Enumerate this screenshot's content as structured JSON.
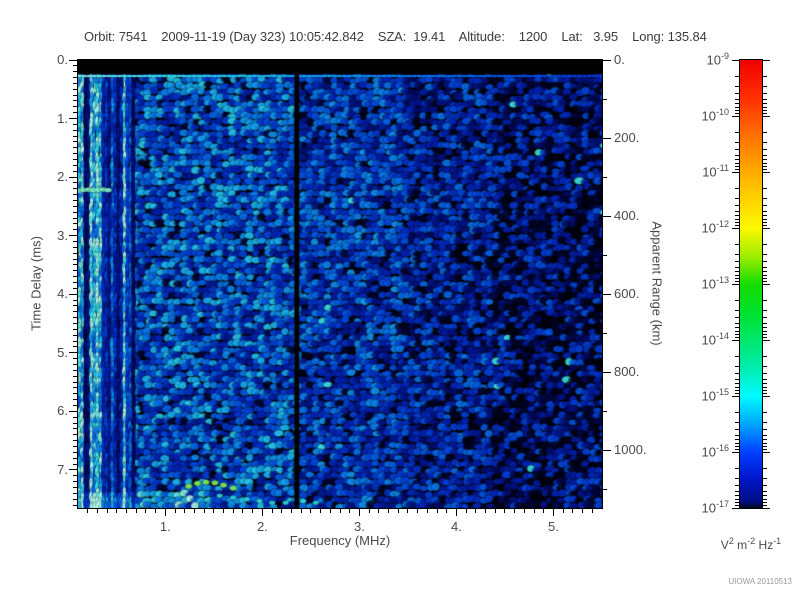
{
  "header": {
    "text": "Orbit: 7541    2009-11-19 (Day 323) 10:05:42.842    SZA:  19.41    Altitude:    1200    Lat:   3.95    Long: 135.84"
  },
  "footer": {
    "credit": "UIOWA 20110513"
  },
  "colors": {
    "text": "#3c3c3c",
    "tick_label": "#4a4a4a",
    "axis": "#000000",
    "background": "#ffffff",
    "credit": "#999999"
  },
  "chart_data": {
    "type": "heatmap",
    "description": "Radar sounder ionogram: received electric field spectral density versus sounding frequency and echo time delay",
    "xlabel": "Frequency (MHz)",
    "ylabel_left": "Time Delay (ms)",
    "ylabel_right": "Apparent Range (km)",
    "x_range": [
      0.1,
      5.5
    ],
    "x_ticks": [
      1,
      2,
      3,
      4,
      5
    ],
    "x_tick_labels": [
      "1.",
      "2.",
      "3.",
      "4.",
      "5."
    ],
    "x_minor_step": 0.1,
    "y_left_range": [
      0,
      7.65
    ],
    "y_left_ticks": [
      0,
      1,
      2,
      3,
      4,
      5,
      6,
      7
    ],
    "y_left_tick_labels": [
      "0.",
      "1.",
      "2.",
      "3.",
      "4.",
      "5.",
      "6.",
      "7."
    ],
    "y_left_minor_step": 0.1,
    "km_per_ms": 150,
    "y_right_ticks": [
      0,
      200,
      400,
      600,
      800,
      1000
    ],
    "y_right_tick_labels": [
      "0.",
      "200.",
      "400.",
      "600.",
      "800.",
      "1000."
    ],
    "y_right_minor_step": 100,
    "colorbar": {
      "scale": "log",
      "tick_exponents": [
        "-9",
        "-10",
        "-11",
        "-12",
        "-13",
        "-14",
        "-15",
        "-16",
        "-17"
      ],
      "tick_base": "10",
      "units_parts": [
        [
          "V",
          "2"
        ],
        [
          "m",
          "-2"
        ],
        [
          "Hz",
          "-1"
        ]
      ],
      "log_minor_fracs": [
        0.301,
        0.477,
        0.602,
        0.699,
        0.778,
        0.845,
        0.903,
        0.954
      ],
      "gradient": [
        [
          0,
          "#f00000"
        ],
        [
          0.09,
          "#ff3300"
        ],
        [
          0.2,
          "#ff8800"
        ],
        [
          0.3,
          "#ffcc00"
        ],
        [
          0.375,
          "#fdf800"
        ],
        [
          0.44,
          "#9bee00"
        ],
        [
          0.5,
          "#15dd00"
        ],
        [
          0.57,
          "#00e233"
        ],
        [
          0.625,
          "#00e76c"
        ],
        [
          0.69,
          "#00edb2"
        ],
        [
          0.75,
          "#00fbff"
        ],
        [
          0.81,
          "#00aaff"
        ],
        [
          0.875,
          "#0040ff"
        ],
        [
          0.93,
          "#0018d0"
        ],
        [
          0.985,
          "#000d85"
        ],
        [
          1,
          "#000a18"
        ]
      ]
    },
    "features": {
      "saturation_band": {
        "t_range": [
          0,
          0.245
        ],
        "color": "#000000"
      },
      "calibration_line": {
        "t": 0.275,
        "intensity_left": 0.95,
        "intensity_right": 0.4
      },
      "interference_gap": {
        "f": 2.355,
        "width_mhz": 0.05
      },
      "plasma_resonance": {
        "t": 2.22,
        "f_range": [
          0.11,
          0.42
        ],
        "color": "#7eeec2"
      },
      "echo_trace_green": {
        "color": "#7ce24e",
        "points": [
          [
            1.24,
            7.28
          ],
          [
            1.33,
            7.23
          ],
          [
            1.42,
            7.21
          ],
          [
            1.51,
            7.22
          ],
          [
            1.6,
            7.26
          ],
          [
            1.7,
            7.31
          ]
        ]
      },
      "echo_trace_cyan": {
        "color": "#2fd8d2",
        "points": [
          [
            1.56,
            7.44
          ],
          [
            1.7,
            7.47
          ],
          [
            1.84,
            7.5
          ],
          [
            1.97,
            7.53
          ],
          [
            2.1,
            7.56
          ],
          [
            2.24,
            7.56
          ],
          [
            2.42,
            7.53
          ],
          [
            2.55,
            7.56
          ]
        ]
      },
      "bottom_left_band": {
        "f_max": 1.45,
        "t_min": 7.4,
        "boost": 0.24
      }
    },
    "render": {
      "seed": 7541,
      "streak_f_max": 0.68,
      "noise_palette": [
        [
          0,
          "#000006"
        ],
        [
          0.14,
          "#000b70"
        ],
        [
          0.3,
          "#0022bb"
        ],
        [
          0.46,
          "#004ae4"
        ],
        [
          0.62,
          "#0b86f0"
        ],
        [
          0.76,
          "#1fc0f2"
        ],
        [
          0.88,
          "#3fe8e4"
        ],
        [
          1,
          "#aef8ea"
        ]
      ],
      "bands": [
        {
          "f_max": 2.33,
          "base": 0.5,
          "variance": 0.3,
          "drop": 0.05
        },
        {
          "f_max": 3.45,
          "base": 0.42,
          "variance": 0.26,
          "drop": 0.09
        },
        {
          "f_max": 4.35,
          "base": 0.35,
          "variance": 0.24,
          "drop": 0.14
        },
        {
          "f_max": 6.0,
          "base": 0.26,
          "variance": 0.24,
          "drop": 0.27
        }
      ]
    }
  }
}
